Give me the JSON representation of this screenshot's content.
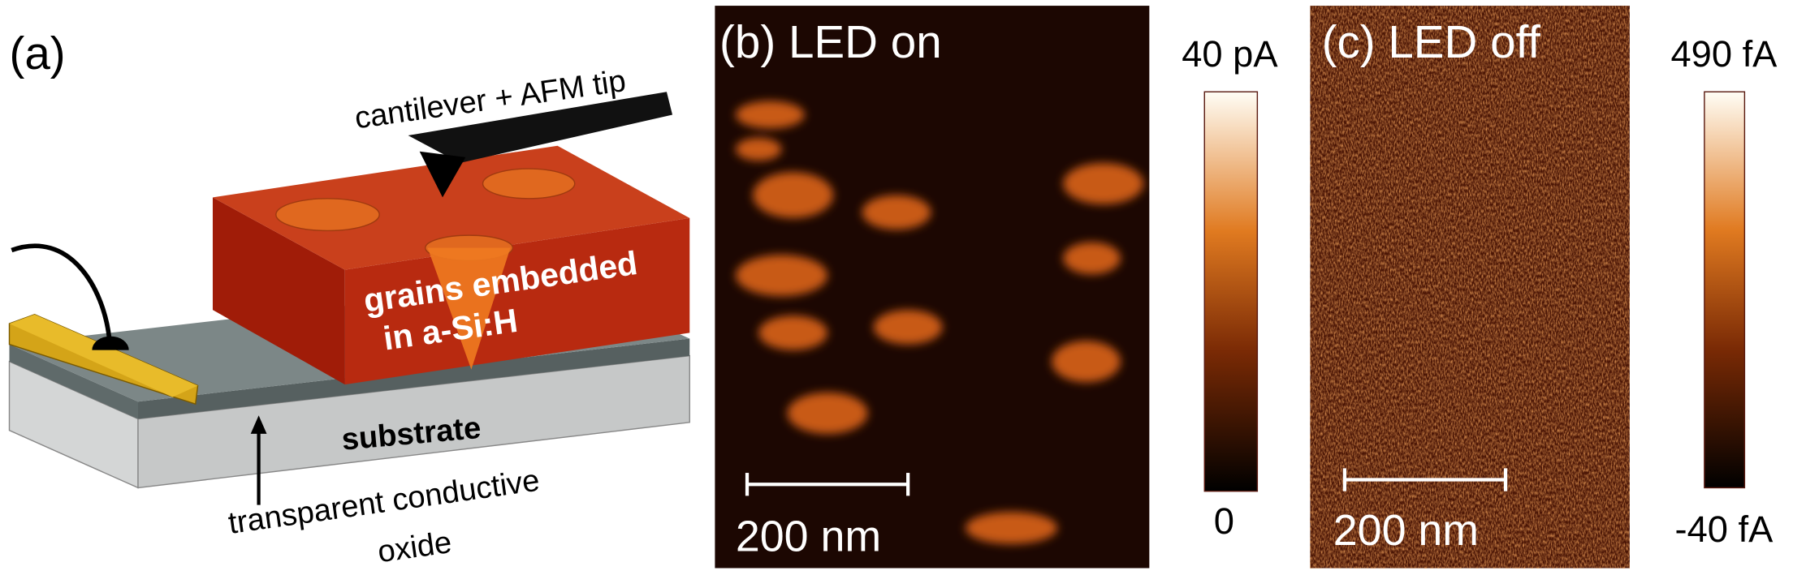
{
  "panel_a": {
    "label": "(a)",
    "cantilever_label": "cantilever + AFM tip",
    "grains_label": [
      "grains embedded",
      "in a-Si:H"
    ],
    "substrate_label": "substrate",
    "tco_label": [
      "transparent conductive",
      "oxide"
    ]
  },
  "panel_b": {
    "label": "(b) LED on",
    "scale_bar": "200 nm",
    "colorbar": {
      "max": "40 pA",
      "min": "0"
    }
  },
  "panel_c": {
    "label": "(c) LED off",
    "scale_bar": "200 nm",
    "colorbar": {
      "max": "490 fA",
      "min": "-40 fA"
    }
  }
}
